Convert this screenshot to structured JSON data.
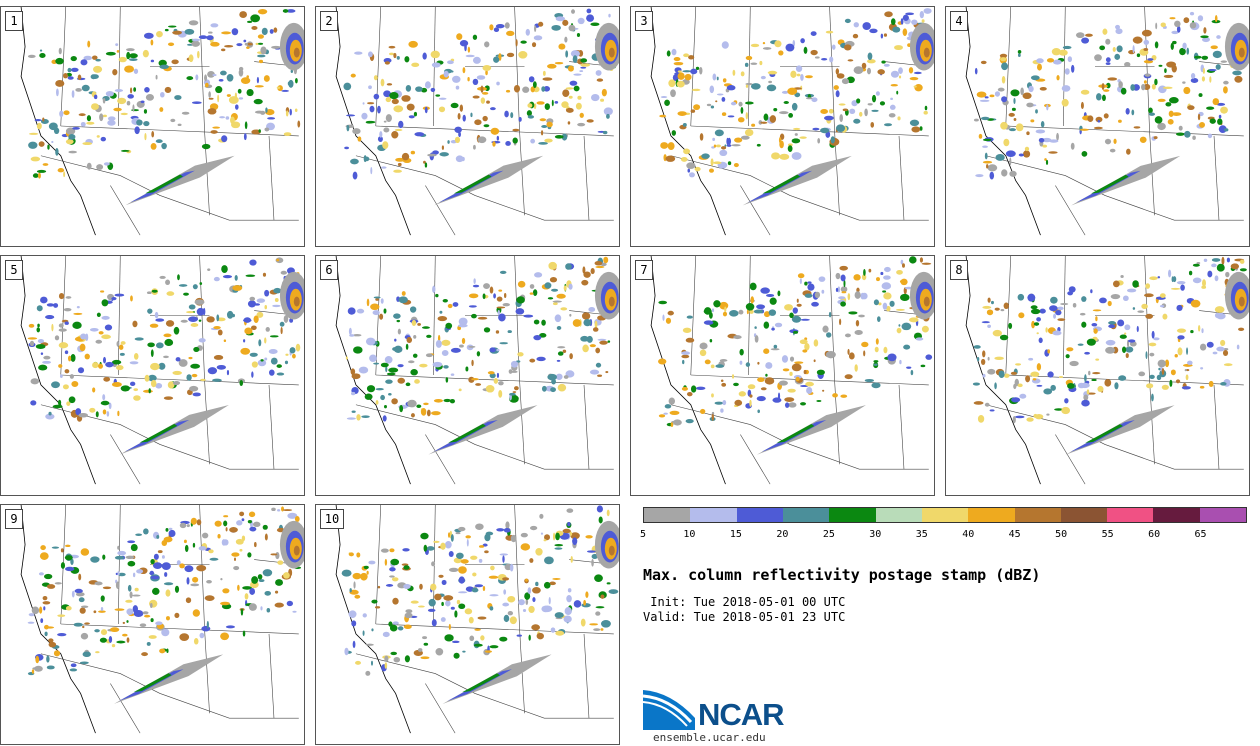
{
  "panels": [
    "1",
    "2",
    "3",
    "4",
    "5",
    "6",
    "7",
    "8",
    "9",
    "10"
  ],
  "colorbar": {
    "colors": [
      "#a6a6a6",
      "#b4bcec",
      "#4e5bd6",
      "#4b8f9a",
      "#0b8811",
      "#b9dcb9",
      "#f0d86a",
      "#eeaa1f",
      "#b5762f",
      "#8b5433",
      "#f05184",
      "#661b3e",
      "#a94fb0"
    ],
    "tick_labels": [
      "5",
      "10",
      "15",
      "20",
      "25",
      "30",
      "35",
      "40",
      "45",
      "50",
      "55",
      "60",
      "65"
    ]
  },
  "title": "Max. column reflectivity postage stamp (dBZ)",
  "init_line": " Init: Tue 2018-05-01 00 UTC",
  "valid_line": "Valid: Tue 2018-05-01 23 UTC",
  "logo_text": "NCAR",
  "site": "ensemble.ucar.edu"
}
